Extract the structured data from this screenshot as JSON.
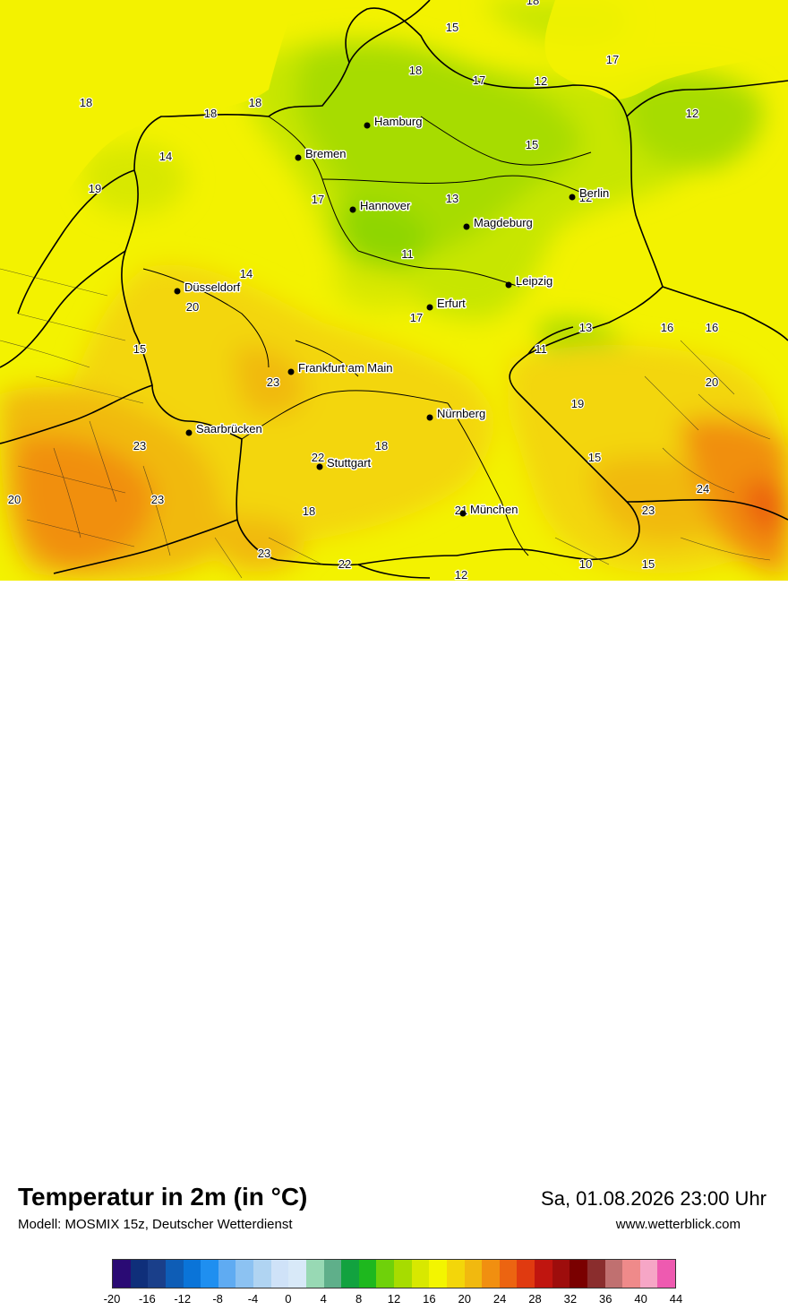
{
  "map": {
    "cities": [
      {
        "name": "Hamburg"
      },
      {
        "name": "Bremen"
      },
      {
        "name": "Hannover"
      },
      {
        "name": "Berlin"
      },
      {
        "name": "Magdeburg"
      },
      {
        "name": "Düsseldorf"
      },
      {
        "name": "Leipzig"
      },
      {
        "name": "Erfurt"
      },
      {
        "name": "Frankfurt am Main"
      },
      {
        "name": "Nürnberg"
      },
      {
        "name": "Saarbrücken"
      },
      {
        "name": "Stuttgart"
      },
      {
        "name": "München"
      }
    ],
    "values": [
      "18",
      "15",
      "18",
      "17",
      "12",
      "12",
      "18",
      "18",
      "18",
      "14",
      "15",
      "19",
      "17",
      "13",
      "14",
      "20",
      "11",
      "17",
      "17",
      "12",
      "13",
      "16",
      "16",
      "15",
      "11",
      "23",
      "20",
      "19",
      "23",
      "18",
      "22",
      "15",
      "24",
      "20",
      "23",
      "18",
      "21",
      "23",
      "23",
      "22",
      "12",
      "10",
      "15"
    ]
  },
  "footer": {
    "title": "Temperatur in 2m (in °C)",
    "model": "Modell: MOSMIX 15z, Deutscher Wetterdienst",
    "datetime": "Sa, 01.08.2026 23:00 Uhr",
    "website": "www.wetterblick.com"
  },
  "legend": {
    "colors": [
      "#2a0a74",
      "#0f2f7a",
      "#1a3f8a",
      "#0e5db6",
      "#0a74d8",
      "#1f8ff0",
      "#5fabf2",
      "#8cc2f2",
      "#b0d4f2",
      "#cfe2f8",
      "#d8e9f8",
      "#98d9b4",
      "#5faf8a",
      "#12a23f",
      "#1eb81e",
      "#6fd10a",
      "#a7dc00",
      "#d8e800",
      "#f3f500",
      "#f3d60a",
      "#f1b90f",
      "#f18f10",
      "#ec6411",
      "#e03a10",
      "#c0150f",
      "#9e0d0c",
      "#7a0000",
      "#8a2d2d",
      "#c07070",
      "#ef8a8a",
      "#f6a6c6",
      "#ee5ab0"
    ],
    "ticks": [
      "-20",
      "-16",
      "-12",
      "-8",
      "-4",
      "0",
      "4",
      "8",
      "12",
      "16",
      "20",
      "24",
      "28",
      "32",
      "36",
      "40",
      "44"
    ]
  }
}
